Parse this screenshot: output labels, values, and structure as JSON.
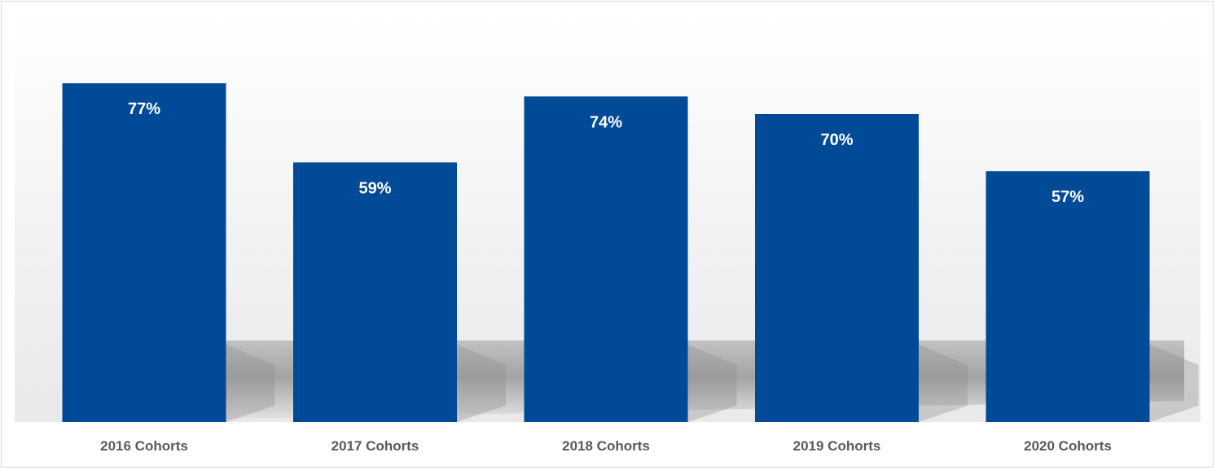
{
  "chart_data": {
    "type": "bar",
    "categories": [
      "2016 Cohorts",
      "2017 Cohorts",
      "2018 Cohorts",
      "2019 Cohorts",
      "2020 Cohorts"
    ],
    "values": [
      77,
      59,
      74,
      70,
      57
    ],
    "value_labels": [
      "77%",
      "59%",
      "74%",
      "70%",
      "57%"
    ],
    "ylim": [
      0,
      100
    ],
    "grid": false,
    "legend": "none",
    "bar_color": "#004A98",
    "label_color": "#FFFFFF",
    "category_label_color": "#595959"
  }
}
